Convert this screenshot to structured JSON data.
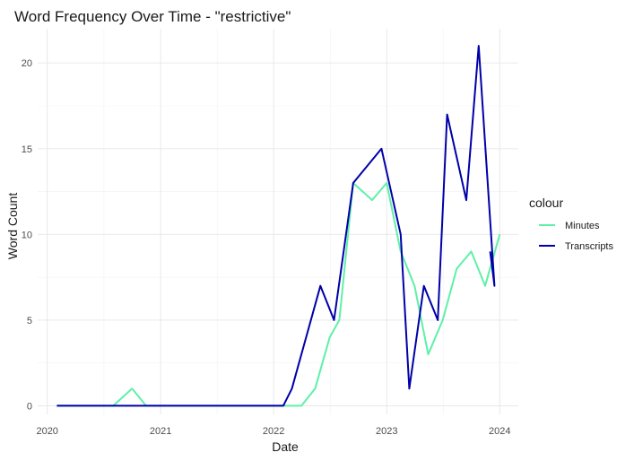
{
  "chart_data": {
    "type": "line",
    "title": "Word Frequency Over Time - \"restrictive\"",
    "xlabel": "Date",
    "ylabel": "Word Count",
    "x_type": "date",
    "xlim": [
      "2019-12-01",
      "2024-03-01"
    ],
    "ylim": [
      -0.5,
      22
    ],
    "x_ticks": [
      "2020-01-01",
      "2021-01-01",
      "2022-01-01",
      "2023-01-01",
      "2024-01-01"
    ],
    "x_tick_labels": [
      "2020",
      "2021",
      "2022",
      "2023",
      "2024"
    ],
    "y_ticks": [
      0,
      5,
      10,
      15,
      20
    ],
    "y_tick_labels": [
      "0",
      "5",
      "10",
      "15",
      "20"
    ],
    "grid": true,
    "legend": {
      "title": "colour",
      "position": "right"
    },
    "series": [
      {
        "name": "Minutes",
        "color": "#5ef0a8",
        "points": [
          [
            "2020-02-01",
            0
          ],
          [
            "2020-08-01",
            0
          ],
          [
            "2020-10-01",
            1
          ],
          [
            "2020-11-15",
            0
          ],
          [
            "2022-04-01",
            0
          ],
          [
            "2022-05-15",
            1
          ],
          [
            "2022-07-01",
            4
          ],
          [
            "2022-08-01",
            5
          ],
          [
            "2022-09-15",
            13
          ],
          [
            "2022-11-15",
            12
          ],
          [
            "2023-01-01",
            13
          ],
          [
            "2023-02-15",
            9
          ],
          [
            "2023-04-01",
            7
          ],
          [
            "2023-05-15",
            3
          ],
          [
            "2023-07-01",
            5
          ],
          [
            "2023-08-15",
            8
          ],
          [
            "2023-10-01",
            9
          ],
          [
            "2023-11-15",
            7
          ],
          [
            "2024-01-01",
            10
          ]
        ]
      },
      {
        "name": "Transcripts",
        "color": "#0000a8",
        "points": [
          [
            "2020-02-01",
            0
          ],
          [
            "2020-02-15",
            0
          ],
          [
            "2020-08-01",
            0
          ],
          [
            "2020-11-15",
            0
          ],
          [
            "2022-02-01",
            0
          ],
          [
            "2022-03-01",
            1
          ],
          [
            "2022-06-01",
            7
          ],
          [
            "2022-07-15",
            5
          ],
          [
            "2022-09-15",
            13
          ],
          [
            "2022-12-15",
            15
          ],
          [
            "2023-02-15",
            10
          ],
          [
            "2023-03-15",
            1
          ],
          [
            "2023-05-01",
            7
          ],
          [
            "2023-06-15",
            5
          ],
          [
            "2023-07-15",
            17
          ],
          [
            "2023-09-15",
            12
          ],
          [
            "2023-10-25",
            21
          ],
          [
            "2023-12-15",
            7
          ],
          [
            "2023-12-01",
            9
          ]
        ]
      }
    ]
  }
}
